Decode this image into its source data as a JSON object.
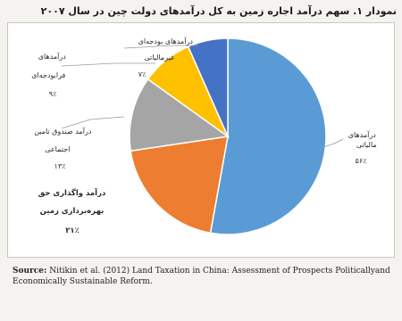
{
  "title": "نمودار ۱. سهم درآمد اجاره زمین به کل درآمدهای دولت چین در سال ۲۰۰۷",
  "source": {
    "label": "Source:",
    "text": "Nitikin et al. (2012) Land Taxation in China: Assessment of Prospects Politicallyand Economically Sustainable Reform."
  },
  "colors": {
    "tax": "#5b9bd5",
    "land_lease": "#ed7d31",
    "social_security": "#a5a5a5",
    "extrabudget": "#ffc000",
    "other_tax": "#4472c4"
  },
  "chart_data": {
    "type": "pie",
    "slices": [
      {
        "key": "tax",
        "label_lines": [
          "درآمدهای",
          "مالیاتی"
        ],
        "value_label": "۵۶٪",
        "value": 56
      },
      {
        "key": "land_lease",
        "label_lines": [
          "درآمد واگذاری حق",
          "بهره‌برداری زمین"
        ],
        "value_label": "۲۱٪",
        "value": 21
      },
      {
        "key": "social_security",
        "label_lines": [
          "درآمد صندوق تامین",
          "اجتماعی"
        ],
        "value_label": "۱۳٪",
        "value": 13
      },
      {
        "key": "extrabudget",
        "label_lines": [
          "درآمدهای",
          "فرابودجه‌ای"
        ],
        "value_label": "۹٪",
        "value": 9
      },
      {
        "key": "other_tax",
        "label_lines": [
          "درآمدهای بودجه‌ای",
          "غیرمالیاتی"
        ],
        "value_label": "۷٪",
        "value": 7
      }
    ]
  }
}
